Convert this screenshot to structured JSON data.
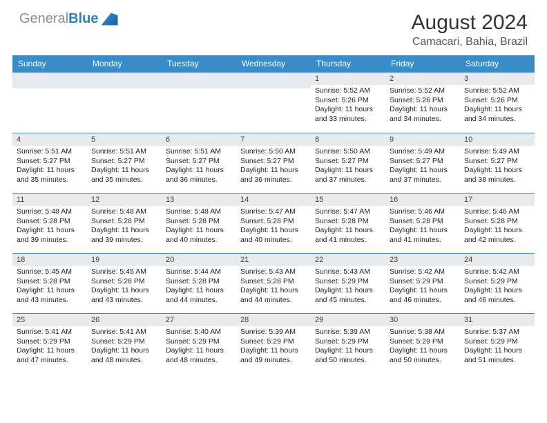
{
  "logo_gray": "General",
  "logo_blue": "Blue",
  "month_title": "August 2024",
  "location": "Camacari, Bahia, Brazil",
  "day_names": [
    "Sunday",
    "Monday",
    "Tuesday",
    "Wednesday",
    "Thursday",
    "Friday",
    "Saturday"
  ],
  "header_bg": "#3a8cc8",
  "daynum_bg": "#e9eaec",
  "border_color": "#3a8cc8",
  "first_weekday": 4,
  "days": [
    {
      "n": 1,
      "sr": "5:52 AM",
      "ss": "5:26 PM",
      "dl": "11 hours and 33 minutes."
    },
    {
      "n": 2,
      "sr": "5:52 AM",
      "ss": "5:26 PM",
      "dl": "11 hours and 34 minutes."
    },
    {
      "n": 3,
      "sr": "5:52 AM",
      "ss": "5:26 PM",
      "dl": "11 hours and 34 minutes."
    },
    {
      "n": 4,
      "sr": "5:51 AM",
      "ss": "5:27 PM",
      "dl": "11 hours and 35 minutes."
    },
    {
      "n": 5,
      "sr": "5:51 AM",
      "ss": "5:27 PM",
      "dl": "11 hours and 35 minutes."
    },
    {
      "n": 6,
      "sr": "5:51 AM",
      "ss": "5:27 PM",
      "dl": "11 hours and 36 minutes."
    },
    {
      "n": 7,
      "sr": "5:50 AM",
      "ss": "5:27 PM",
      "dl": "11 hours and 36 minutes."
    },
    {
      "n": 8,
      "sr": "5:50 AM",
      "ss": "5:27 PM",
      "dl": "11 hours and 37 minutes."
    },
    {
      "n": 9,
      "sr": "5:49 AM",
      "ss": "5:27 PM",
      "dl": "11 hours and 37 minutes."
    },
    {
      "n": 10,
      "sr": "5:49 AM",
      "ss": "5:27 PM",
      "dl": "11 hours and 38 minutes."
    },
    {
      "n": 11,
      "sr": "5:48 AM",
      "ss": "5:28 PM",
      "dl": "11 hours and 39 minutes."
    },
    {
      "n": 12,
      "sr": "5:48 AM",
      "ss": "5:28 PM",
      "dl": "11 hours and 39 minutes."
    },
    {
      "n": 13,
      "sr": "5:48 AM",
      "ss": "5:28 PM",
      "dl": "11 hours and 40 minutes."
    },
    {
      "n": 14,
      "sr": "5:47 AM",
      "ss": "5:28 PM",
      "dl": "11 hours and 40 minutes."
    },
    {
      "n": 15,
      "sr": "5:47 AM",
      "ss": "5:28 PM",
      "dl": "11 hours and 41 minutes."
    },
    {
      "n": 16,
      "sr": "5:46 AM",
      "ss": "5:28 PM",
      "dl": "11 hours and 41 minutes."
    },
    {
      "n": 17,
      "sr": "5:46 AM",
      "ss": "5:28 PM",
      "dl": "11 hours and 42 minutes."
    },
    {
      "n": 18,
      "sr": "5:45 AM",
      "ss": "5:28 PM",
      "dl": "11 hours and 43 minutes."
    },
    {
      "n": 19,
      "sr": "5:45 AM",
      "ss": "5:28 PM",
      "dl": "11 hours and 43 minutes."
    },
    {
      "n": 20,
      "sr": "5:44 AM",
      "ss": "5:28 PM",
      "dl": "11 hours and 44 minutes."
    },
    {
      "n": 21,
      "sr": "5:43 AM",
      "ss": "5:28 PM",
      "dl": "11 hours and 44 minutes."
    },
    {
      "n": 22,
      "sr": "5:43 AM",
      "ss": "5:29 PM",
      "dl": "11 hours and 45 minutes."
    },
    {
      "n": 23,
      "sr": "5:42 AM",
      "ss": "5:29 PM",
      "dl": "11 hours and 46 minutes."
    },
    {
      "n": 24,
      "sr": "5:42 AM",
      "ss": "5:29 PM",
      "dl": "11 hours and 46 minutes."
    },
    {
      "n": 25,
      "sr": "5:41 AM",
      "ss": "5:29 PM",
      "dl": "11 hours and 47 minutes."
    },
    {
      "n": 26,
      "sr": "5:41 AM",
      "ss": "5:29 PM",
      "dl": "11 hours and 48 minutes."
    },
    {
      "n": 27,
      "sr": "5:40 AM",
      "ss": "5:29 PM",
      "dl": "11 hours and 48 minutes."
    },
    {
      "n": 28,
      "sr": "5:39 AM",
      "ss": "5:29 PM",
      "dl": "11 hours and 49 minutes."
    },
    {
      "n": 29,
      "sr": "5:39 AM",
      "ss": "5:29 PM",
      "dl": "11 hours and 50 minutes."
    },
    {
      "n": 30,
      "sr": "5:38 AM",
      "ss": "5:29 PM",
      "dl": "11 hours and 50 minutes."
    },
    {
      "n": 31,
      "sr": "5:37 AM",
      "ss": "5:29 PM",
      "dl": "11 hours and 51 minutes."
    }
  ]
}
